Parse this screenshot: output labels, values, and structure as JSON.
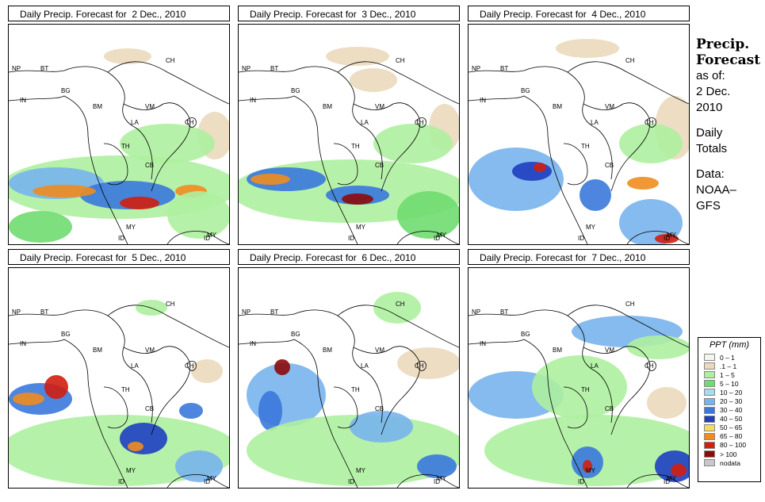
{
  "panels": [
    {
      "title": "Daily Precip. Forecast for  2 Dec., 2010"
    },
    {
      "title": "Daily Precip. Forecast for  3 Dec., 2010"
    },
    {
      "title": "Daily Precip. Forecast for  4 Dec., 2010"
    },
    {
      "title": "Daily Precip. Forecast for  5 Dec., 2010"
    },
    {
      "title": "Daily Precip. Forecast for  6 Dec., 2010"
    },
    {
      "title": "Daily Precip. Forecast for  7 Dec., 2010"
    }
  ],
  "map_labels": [
    "NP",
    "BT",
    "CH",
    "IN",
    "BG",
    "BM",
    "VM",
    "LA",
    "CH",
    "TH",
    "CB",
    "MY",
    "MY",
    "ID",
    "ID"
  ],
  "sidebar": {
    "title1": "Precip.",
    "title2": "Forecast",
    "asof": "as of:",
    "date1": "2 Dec.",
    "date2": "2010",
    "daily1": "Daily",
    "daily2": "Totals",
    "data1": "Data:",
    "data2": "NOAA–",
    "data3": "GFS"
  },
  "legend": {
    "title": "PPT (mm)",
    "items": [
      {
        "label": "0 – 1",
        "color": "#f5f5ef"
      },
      {
        "label": ".1 – 1",
        "color": "#ead9bd"
      },
      {
        "label": "1 – 5",
        "color": "#aef0a0"
      },
      {
        "label": "5 – 10",
        "color": "#6fdc6f"
      },
      {
        "label": "10 – 20",
        "color": "#a7dcf0"
      },
      {
        "label": "20 – 30",
        "color": "#78b4ec"
      },
      {
        "label": "30 – 40",
        "color": "#3a78dc"
      },
      {
        "label": "40 – 50",
        "color": "#1e3fc0"
      },
      {
        "label": "50 – 65",
        "color": "#f5dc5a"
      },
      {
        "label": "65 – 80",
        "color": "#f08c1e"
      },
      {
        "label": "80 – 100",
        "color": "#d21e0f"
      },
      {
        "label": "> 100",
        "color": "#8c0a0a"
      },
      {
        "label": "nodata",
        "color": "#c8c8c8"
      }
    ]
  }
}
